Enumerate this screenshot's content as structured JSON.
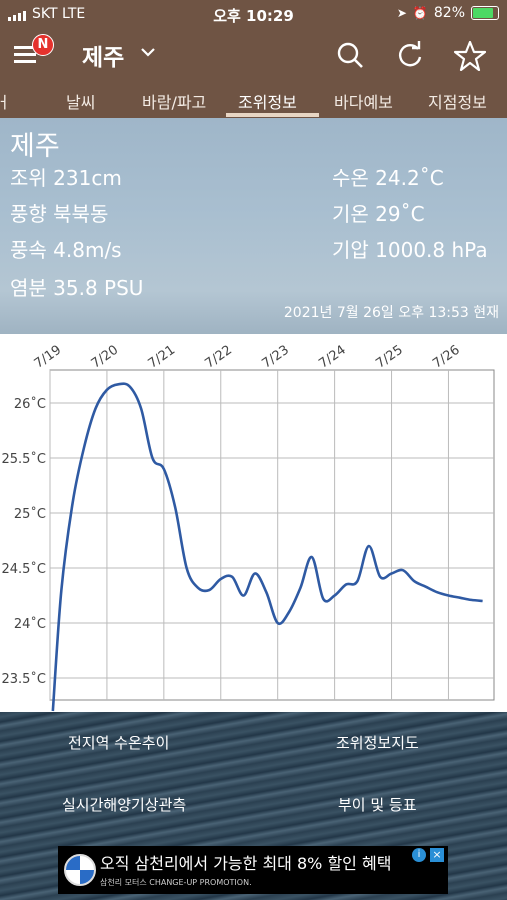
{
  "status": {
    "carrier": "SKT  LTE",
    "time": "오후 10:29",
    "battery": "82%",
    "battery_level": 0.82
  },
  "appbar": {
    "notify_badge": "N",
    "location": "제주"
  },
  "tabs": [
    "바람/파고",
    "날씨",
    "조위정보",
    "바다예보",
    "지점정보"
  ],
  "tabs_visible": {
    "left_partial": "ㅓ",
    "t1": "날씨",
    "t2": "바람/파고",
    "t3": "조위정보",
    "t4": "바다예보",
    "t5": "지점정보"
  },
  "active_tab": "조위정보",
  "hero": {
    "place": "제주",
    "tide": "조위 231cm",
    "wind_dir": "풍향 북북동",
    "wind_speed": "풍속 4.8m/s",
    "salinity": "염분 35.8 PSU",
    "water_temp": "수온 24.2˚C",
    "air_temp": "기온 29˚C",
    "pressure": "기압 1000.8 hPa",
    "timestamp": "2021년 7월 26일 오후 13:53 현재"
  },
  "chart_data": {
    "type": "line",
    "title": "",
    "xlabel": "",
    "ylabel": "",
    "x_tick_labels": [
      "7/19",
      "7/20",
      "7/21",
      "7/22",
      "7/23",
      "7/24",
      "7/25",
      "7/26"
    ],
    "y_tick_labels": [
      "26˚C",
      "25.5˚C",
      "25˚C",
      "24.5˚C",
      "24˚C",
      "23.5˚C"
    ],
    "y_ticks": [
      26,
      25.5,
      25,
      24.5,
      24,
      23.5
    ],
    "ylim": [
      23.3,
      26.3
    ],
    "xlim": [
      19,
      26.8
    ],
    "grid": true,
    "color": "#2f5aa3",
    "series": [
      {
        "x": [
          19.05,
          19.2,
          19.4,
          19.6,
          19.8,
          20.0,
          20.2,
          20.4,
          20.6,
          20.8,
          21.0,
          21.2,
          21.4,
          21.6,
          21.8,
          22.0,
          22.2,
          22.4,
          22.6,
          22.8,
          23.0,
          23.2,
          23.4,
          23.6,
          23.8,
          24.0,
          24.2,
          24.4,
          24.6,
          24.8,
          25.0,
          25.2,
          25.4,
          25.6,
          25.8,
          26.0,
          26.2,
          26.4,
          26.6
        ],
        "values": [
          23.2,
          24.3,
          25.1,
          25.6,
          25.95,
          26.12,
          26.17,
          26.15,
          25.95,
          25.5,
          25.4,
          25.05,
          24.5,
          24.32,
          24.3,
          24.4,
          24.42,
          24.25,
          24.45,
          24.28,
          24.0,
          24.1,
          24.32,
          24.6,
          24.22,
          24.25,
          24.35,
          24.38,
          24.7,
          24.42,
          24.45,
          24.48,
          24.38,
          24.33,
          24.28,
          24.25,
          24.23,
          24.21,
          24.2
        ]
      }
    ]
  },
  "links": {
    "all_regions": "전지역 수온추이",
    "tide_map": "조위정보지도",
    "realtime": "실시간해양기상관측",
    "buoy": "부이 및 등표"
  },
  "ad": {
    "text": "오직 삼천리에서 가능한 최대 8% 할인 혜택",
    "sub": "삼천리 모터스 CHANGE-UP PROMOTION.",
    "info": "i",
    "close": "×"
  },
  "colors": {
    "brand_brown": "#6f5444",
    "line": "#2f5aa3"
  }
}
